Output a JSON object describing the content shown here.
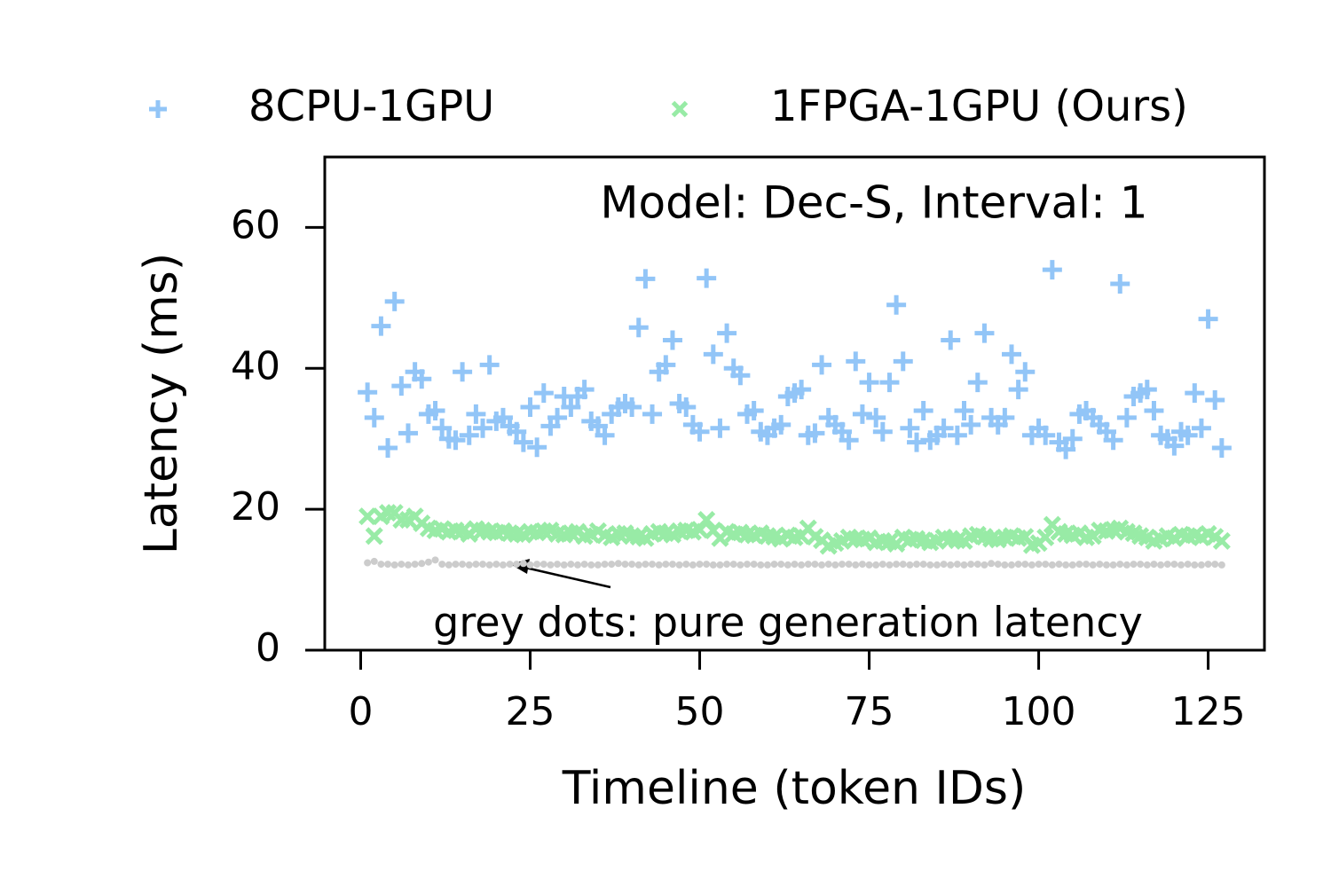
{
  "chart_data": {
    "type": "scatter",
    "title": "Model: Dec-S, Interval: 1",
    "annotation": "grey dots: pure generation latency",
    "xlabel": "Timeline (token IDs)",
    "ylabel": "Latency (ms)",
    "x": [
      1,
      2,
      3,
      4,
      5,
      6,
      7,
      8,
      9,
      10,
      11,
      12,
      13,
      14,
      15,
      16,
      17,
      18,
      19,
      20,
      21,
      22,
      23,
      24,
      25,
      26,
      27,
      28,
      29,
      30,
      31,
      32,
      33,
      34,
      35,
      36,
      37,
      38,
      39,
      40,
      41,
      42,
      43,
      44,
      45,
      46,
      47,
      48,
      49,
      50,
      51,
      52,
      53,
      54,
      55,
      56,
      57,
      58,
      59,
      60,
      61,
      62,
      63,
      64,
      65,
      66,
      67,
      68,
      69,
      70,
      71,
      72,
      73,
      74,
      75,
      76,
      77,
      78,
      79,
      80,
      81,
      82,
      83,
      84,
      85,
      86,
      87,
      88,
      89,
      90,
      91,
      92,
      93,
      94,
      95,
      96,
      97,
      98,
      99,
      100,
      101,
      102,
      103,
      104,
      105,
      106,
      107,
      108,
      109,
      110,
      111,
      112,
      113,
      114,
      115,
      116,
      117,
      118,
      119,
      120,
      121,
      122,
      123,
      124,
      125,
      126,
      127
    ],
    "series": [
      {
        "name": "8CPU-1GPU",
        "color": "#92c5f7",
        "marker": "plus",
        "values": [
          36.6,
          33,
          46,
          28.7,
          49.5,
          37.5,
          30.8,
          39.5,
          38.5,
          33.5,
          34,
          31.5,
          30,
          29.8,
          39.5,
          30.5,
          33.5,
          31.5,
          40.5,
          32.5,
          33,
          31.8,
          31,
          29.5,
          34.5,
          28.8,
          36.5,
          31.8,
          33,
          36,
          34.5,
          36,
          37,
          32.5,
          31.8,
          30.5,
          33.5,
          34.5,
          35,
          34.5,
          45.8,
          52.7,
          33.5,
          39.5,
          40.5,
          44,
          35,
          34.5,
          32,
          31,
          52.8,
          42,
          31.5,
          45,
          40,
          39,
          33.5,
          34,
          31,
          30.5,
          31.5,
          32,
          36,
          36.5,
          37,
          30.5,
          30.8,
          40.5,
          33,
          32,
          31,
          29.8,
          41,
          33.5,
          38,
          33,
          31,
          38,
          49,
          41,
          31.5,
          29.5,
          34,
          29.8,
          30.5,
          31.5,
          44,
          30.5,
          34,
          32,
          38,
          45,
          33,
          32,
          33,
          42,
          37,
          39.5,
          30.5,
          31.5,
          30.5,
          54,
          29.5,
          28.5,
          30,
          33.5,
          34,
          33,
          32,
          31,
          29.8,
          52,
          33,
          36,
          36.5,
          37,
          34,
          30.5,
          30,
          29,
          31,
          30.5,
          36.5,
          31.5,
          47,
          35.5,
          28.7
        ]
      },
      {
        "name": "1FPGA-1GPU (Ours)",
        "color": "#98eba6",
        "marker": "x",
        "values": [
          19,
          16.2,
          19,
          19.5,
          19.5,
          18.5,
          18.5,
          19,
          18,
          17.3,
          17,
          17.2,
          16.8,
          17,
          16.9,
          16.5,
          17.2,
          17,
          16.8,
          16.7,
          16.9,
          16.6,
          16.5,
          16.4,
          16.8,
          16.7,
          16.9,
          17,
          16.5,
          16.4,
          16.6,
          16.8,
          16.2,
          16.4,
          16.9,
          16.3,
          16,
          16.5,
          16.6,
          16.2,
          16.1,
          15.9,
          16.5,
          16.8,
          16.6,
          16.4,
          16.9,
          17,
          16.8,
          17.1,
          18.5,
          17,
          15.9,
          16.8,
          16.5,
          16.7,
          16.4,
          16.3,
          16.6,
          16.2,
          16.1,
          15.8,
          16.3,
          16,
          16.2,
          17.3,
          16.1,
          15.6,
          14.8,
          15.2,
          15.5,
          16,
          15.8,
          15.7,
          15.9,
          15.3,
          15.5,
          15.4,
          15.1,
          16,
          15.7,
          15.8,
          15.6,
          15.3,
          15.5,
          16,
          15.8,
          15.6,
          15.5,
          16.2,
          16.4,
          16.1,
          15.8,
          15.7,
          16,
          16.2,
          15.9,
          16.1,
          14.9,
          15.2,
          16,
          17.8,
          16.8,
          16.5,
          16.3,
          16.6,
          16,
          16.2,
          17,
          16.9,
          17.1,
          17.3,
          16.8,
          16.6,
          16.2,
          16,
          15.5,
          15.8,
          16.2,
          15.9,
          16.4,
          16.2,
          16.3,
          16,
          16.5,
          16.1,
          15.5
        ]
      },
      {
        "color": "#cccccc",
        "marker": "dot",
        "values": [
          12.4,
          12.6,
          12.2,
          12.2,
          12.1,
          12.2,
          12.1,
          12.2,
          12.3,
          12.5,
          12.8,
          12.2,
          12.1,
          12.2,
          12.2,
          12.1,
          12.2,
          12.2,
          12.1,
          12.2,
          12.1,
          12.2,
          12.2,
          12.3,
          12.1,
          12.2,
          12.2,
          12.1,
          12.2,
          12.1,
          12.2,
          12.1,
          12.2,
          12.1,
          12.1,
          12.2,
          12.2,
          12.3,
          12.2,
          12.2,
          12.1,
          12.2,
          12.2,
          12.1,
          12.2,
          12.2,
          12.1,
          12.2,
          12.1,
          12.2,
          12.2,
          12.1,
          12.1,
          12.2,
          12.2,
          12.1,
          12.2,
          12.2,
          12.1,
          12.1,
          12.2,
          12.2,
          12.1,
          12.2,
          12.1,
          12.2,
          12.2,
          12.1,
          12.2,
          12.1,
          12.2,
          12.2,
          12.1,
          12.2,
          12.1,
          12.1,
          12.2,
          12.1,
          12.2,
          12.2,
          12.1,
          12.2,
          12.2,
          12.1,
          12.1,
          12.2,
          12.1,
          12.2,
          12.1,
          12.2,
          12.2,
          12.1,
          12.3,
          12.2,
          12.1,
          12.1,
          12.2,
          12.2,
          12.1,
          12.2,
          12.2,
          12.1,
          12.2,
          12.1,
          12.1,
          12.2,
          12.2,
          12.1,
          12.2,
          12.1,
          12.1,
          12.2,
          12.1,
          12.2,
          12.2,
          12.1,
          12.2,
          12.1,
          12.2,
          12.2,
          12.1,
          12.2,
          12.1,
          12.1,
          12.2,
          12.2,
          12.1
        ]
      }
    ],
    "xlim": [
      -5.3,
      133.3
    ],
    "xticks": [
      0,
      25,
      50,
      75,
      100,
      125
    ],
    "ylim": [
      0,
      70
    ],
    "yticks": [
      0,
      20,
      40,
      60
    ]
  }
}
